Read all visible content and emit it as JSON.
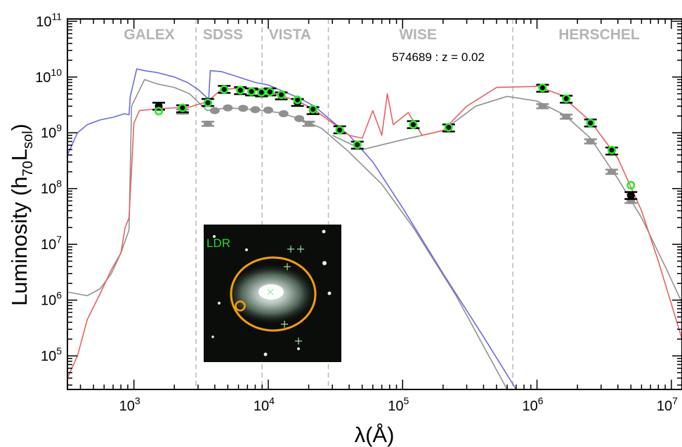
{
  "chart_data": {
    "type": "scatter",
    "title": "",
    "annotation": "574689 : z = 0.02",
    "xlabel": "λ(Å)",
    "ylabel_parts": [
      "Luminosity (h",
      "70",
      "L",
      "sol",
      ")"
    ],
    "x_log": true,
    "y_log": true,
    "xlim": [
      320,
      12000000
    ],
    "ylim": [
      25000,
      110000000000
    ],
    "x_ticks": [
      {
        "value": 1000,
        "base": "10",
        "exp": "3"
      },
      {
        "value": 10000,
        "base": "10",
        "exp": "4"
      },
      {
        "value": 100000,
        "base": "10",
        "exp": "5"
      },
      {
        "value": 1000000,
        "base": "10",
        "exp": "6"
      },
      {
        "value": 10000000,
        "base": "10",
        "exp": "7"
      }
    ],
    "y_ticks": [
      {
        "value": 100000,
        "base": "10",
        "exp": "5"
      },
      {
        "value": 1000000,
        "base": "10",
        "exp": "6"
      },
      {
        "value": 10000000,
        "base": "10",
        "exp": "7"
      },
      {
        "value": 100000000,
        "base": "10",
        "exp": "8"
      },
      {
        "value": 1000000000,
        "base": "10",
        "exp": "9"
      },
      {
        "value": 10000000000,
        "base": "10",
        "exp": "10"
      },
      {
        "value": 100000000000,
        "base": "10",
        "exp": "11"
      }
    ],
    "bands": [
      {
        "name": "GALEX",
        "center": 1300
      },
      {
        "name": "SDSS",
        "center": 4600
      },
      {
        "name": "VISTA",
        "center": 14500
      },
      {
        "name": "WISE",
        "center": 130000
      },
      {
        "name": "HERSCHEL",
        "center": 2900000
      }
    ],
    "band_dividers": [
      2900,
      9000,
      28000,
      660000
    ],
    "colors": {
      "observed_marker_fill": "#000000",
      "model_marker_ring": "#22ee22",
      "unattenuated_model": "#6a6ae0",
      "attenuated_model": "#e86060",
      "comparison_model": "#909090",
      "band_label": "#b4b4b4",
      "divider": "#b8b8b8",
      "inset_aperture": "#f5a000"
    },
    "series": [
      {
        "role": "observed_photometry",
        "points": [
          {
            "x": 1530,
            "y": 3000000000
          },
          {
            "x": 2300,
            "y": 2700000000
          },
          {
            "x": 3550,
            "y": 3500000000
          },
          {
            "x": 4700,
            "y": 6000000000
          },
          {
            "x": 6200,
            "y": 5700000000
          },
          {
            "x": 7500,
            "y": 5400000000
          },
          {
            "x": 8900,
            "y": 5200000000
          },
          {
            "x": 10300,
            "y": 5400000000
          },
          {
            "x": 12500,
            "y": 4600000000
          },
          {
            "x": 16500,
            "y": 3500000000
          },
          {
            "x": 21500,
            "y": 2500000000
          },
          {
            "x": 34000,
            "y": 1130000000
          },
          {
            "x": 46000,
            "y": 600000000
          },
          {
            "x": 120000,
            "y": 1400000000
          },
          {
            "x": 220000,
            "y": 1220000000
          },
          {
            "x": 1100000,
            "y": 6300000000
          },
          {
            "x": 1650000,
            "y": 4000000000
          },
          {
            "x": 2500000,
            "y": 1500000000
          },
          {
            "x": 3600000,
            "y": 470000000
          },
          {
            "x": 5000000,
            "y": 75000000
          }
        ]
      },
      {
        "role": "model_photometry",
        "points": [
          {
            "x": 1530,
            "y": 2450000000
          },
          {
            "x": 2300,
            "y": 2800000000
          },
          {
            "x": 3550,
            "y": 3450000000
          },
          {
            "x": 4700,
            "y": 6000000000
          },
          {
            "x": 6200,
            "y": 5800000000
          },
          {
            "x": 7500,
            "y": 5500000000
          },
          {
            "x": 8900,
            "y": 5300000000
          },
          {
            "x": 10300,
            "y": 5400000000
          },
          {
            "x": 12500,
            "y": 4800000000
          },
          {
            "x": 16500,
            "y": 3900000000
          },
          {
            "x": 21500,
            "y": 2650000000
          },
          {
            "x": 34000,
            "y": 1120000000
          },
          {
            "x": 46000,
            "y": 610000000
          },
          {
            "x": 120000,
            "y": 1400000000
          },
          {
            "x": 220000,
            "y": 1250000000
          },
          {
            "x": 1100000,
            "y": 6400000000
          },
          {
            "x": 1650000,
            "y": 4100000000
          },
          {
            "x": 2500000,
            "y": 1500000000
          },
          {
            "x": 3600000,
            "y": 490000000
          },
          {
            "x": 5000000,
            "y": 115000000
          }
        ]
      },
      {
        "role": "grey_photometry",
        "points": [
          {
            "x": 2300,
            "y": 2400000000
          },
          {
            "x": 3550,
            "y": 1450000000
          },
          {
            "x": 20000,
            "y": 1450000000
          },
          {
            "x": 1100000,
            "y": 3000000000
          },
          {
            "x": 1650000,
            "y": 1950000000
          },
          {
            "x": 2500000,
            "y": 700000000
          },
          {
            "x": 3600000,
            "y": 200000000
          },
          {
            "x": 5000000,
            "y": 60000000
          }
        ]
      },
      {
        "role": "grey_continuum_band",
        "points": [
          {
            "x": 4000,
            "y": 2500000000
          },
          {
            "x": 5000,
            "y": 2800000000
          },
          {
            "x": 6500,
            "y": 2750000000
          },
          {
            "x": 8000,
            "y": 2600000000
          },
          {
            "x": 10000,
            "y": 2550000000
          },
          {
            "x": 13000,
            "y": 2200000000
          },
          {
            "x": 17000,
            "y": 1800000000
          }
        ]
      },
      {
        "role": "unattenuated_model",
        "points": [
          {
            "x": 320,
            "y": 400000000
          },
          {
            "x": 380,
            "y": 1000000000
          },
          {
            "x": 450,
            "y": 1400000000
          },
          {
            "x": 560,
            "y": 1700000000
          },
          {
            "x": 700,
            "y": 1900000000
          },
          {
            "x": 850,
            "y": 2200000000
          },
          {
            "x": 920,
            "y": 2100000000
          },
          {
            "x": 940,
            "y": 4500000000
          },
          {
            "x": 1050,
            "y": 14000000000
          },
          {
            "x": 1200,
            "y": 13000000000
          },
          {
            "x": 1500,
            "y": 12000000000
          },
          {
            "x": 2000,
            "y": 10000000000
          },
          {
            "x": 2500,
            "y": 8000000000
          },
          {
            "x": 3000,
            "y": 6000000000
          },
          {
            "x": 3600,
            "y": 4000000000
          },
          {
            "x": 3700,
            "y": 13000000000
          },
          {
            "x": 4500,
            "y": 12500000000
          },
          {
            "x": 6000,
            "y": 10000000000
          },
          {
            "x": 8000,
            "y": 8000000000
          },
          {
            "x": 10000,
            "y": 7200000000
          },
          {
            "x": 13000,
            "y": 5500000000
          },
          {
            "x": 17000,
            "y": 4200000000
          },
          {
            "x": 22000,
            "y": 3000000000
          },
          {
            "x": 30000,
            "y": 1600000000
          },
          {
            "x": 40000,
            "y": 900000000
          },
          {
            "x": 60000,
            "y": 300000000
          },
          {
            "x": 100000,
            "y": 45000000
          },
          {
            "x": 200000,
            "y": 3000000
          },
          {
            "x": 400000,
            "y": 220000
          },
          {
            "x": 700000,
            "y": 25000
          }
        ]
      },
      {
        "role": "attenuated_model",
        "points": [
          {
            "x": 320,
            "y": 40000
          },
          {
            "x": 380,
            "y": 100000
          },
          {
            "x": 450,
            "y": 450000
          },
          {
            "x": 560,
            "y": 1300000
          },
          {
            "x": 680,
            "y": 3500000
          },
          {
            "x": 800,
            "y": 7000000
          },
          {
            "x": 860,
            "y": 20000000
          },
          {
            "x": 920,
            "y": 30000000
          },
          {
            "x": 1000,
            "y": 1500000000
          },
          {
            "x": 1100,
            "y": 2500000000
          },
          {
            "x": 1500,
            "y": 2700000000
          },
          {
            "x": 2000,
            "y": 2800000000
          },
          {
            "x": 2600,
            "y": 2900000000
          },
          {
            "x": 3500,
            "y": 3600000000
          },
          {
            "x": 4500,
            "y": 6000000000
          },
          {
            "x": 6500,
            "y": 6300000000
          },
          {
            "x": 9000,
            "y": 5600000000
          },
          {
            "x": 12000,
            "y": 4800000000
          },
          {
            "x": 17000,
            "y": 3600000000
          },
          {
            "x": 22000,
            "y": 2600000000
          },
          {
            "x": 30000,
            "y": 1500000000
          },
          {
            "x": 40000,
            "y": 900000000
          },
          {
            "x": 50000,
            "y": 800000000
          },
          {
            "x": 60000,
            "y": 2500000000
          },
          {
            "x": 70000,
            "y": 900000000
          },
          {
            "x": 77000,
            "y": 5000000000
          },
          {
            "x": 85000,
            "y": 1400000000
          },
          {
            "x": 110000,
            "y": 2300000000
          },
          {
            "x": 140000,
            "y": 900000000
          },
          {
            "x": 200000,
            "y": 1100000000
          },
          {
            "x": 300000,
            "y": 3000000000
          },
          {
            "x": 500000,
            "y": 6500000000
          },
          {
            "x": 1000000,
            "y": 6800000000
          },
          {
            "x": 1500000,
            "y": 4800000000
          },
          {
            "x": 2500000,
            "y": 1600000000
          },
          {
            "x": 4000000,
            "y": 350000000
          },
          {
            "x": 6000000,
            "y": 40000000
          },
          {
            "x": 8000000,
            "y": 5000000
          },
          {
            "x": 12000000,
            "y": 200000
          }
        ]
      },
      {
        "role": "comparison_model",
        "points": [
          {
            "x": 320,
            "y": 1400000
          },
          {
            "x": 450,
            "y": 1200000
          },
          {
            "x": 560,
            "y": 1600000
          },
          {
            "x": 680,
            "y": 3000000
          },
          {
            "x": 800,
            "y": 7000000
          },
          {
            "x": 920,
            "y": 18000000
          },
          {
            "x": 960,
            "y": 3000000000
          },
          {
            "x": 1200,
            "y": 9000000000
          },
          {
            "x": 1500,
            "y": 7500000000
          },
          {
            "x": 2000,
            "y": 6500000000
          },
          {
            "x": 2600,
            "y": 5000000000
          },
          {
            "x": 3500,
            "y": 2500000000
          },
          {
            "x": 5000,
            "y": 2800000000
          },
          {
            "x": 8000,
            "y": 2600000000
          },
          {
            "x": 12000,
            "y": 2300000000
          },
          {
            "x": 17000,
            "y": 1800000000
          },
          {
            "x": 25000,
            "y": 1200000000
          },
          {
            "x": 40000,
            "y": 450000000
          },
          {
            "x": 70000,
            "y": 120000000
          },
          {
            "x": 120000,
            "y": 20000000
          },
          {
            "x": 250000,
            "y": 1200000
          },
          {
            "x": 400000,
            "y": 150000
          },
          {
            "x": 600000,
            "y": 25000
          }
        ]
      },
      {
        "role": "comparison_dust_model",
        "points": [
          {
            "x": 30000,
            "y": 900000000
          },
          {
            "x": 50000,
            "y": 500000000
          },
          {
            "x": 100000,
            "y": 750000000
          },
          {
            "x": 200000,
            "y": 1100000000
          },
          {
            "x": 350000,
            "y": 3000000000
          },
          {
            "x": 600000,
            "y": 4500000000
          },
          {
            "x": 1000000,
            "y": 3700000000
          },
          {
            "x": 1600000,
            "y": 2100000000
          },
          {
            "x": 2500000,
            "y": 800000000
          },
          {
            "x": 4000000,
            "y": 150000000
          },
          {
            "x": 6000000,
            "y": 30000000
          },
          {
            "x": 9000000,
            "y": 4000000
          },
          {
            "x": 12000000,
            "y": 900000
          }
        ]
      }
    ],
    "inset": {
      "label": "LDR"
    }
  }
}
